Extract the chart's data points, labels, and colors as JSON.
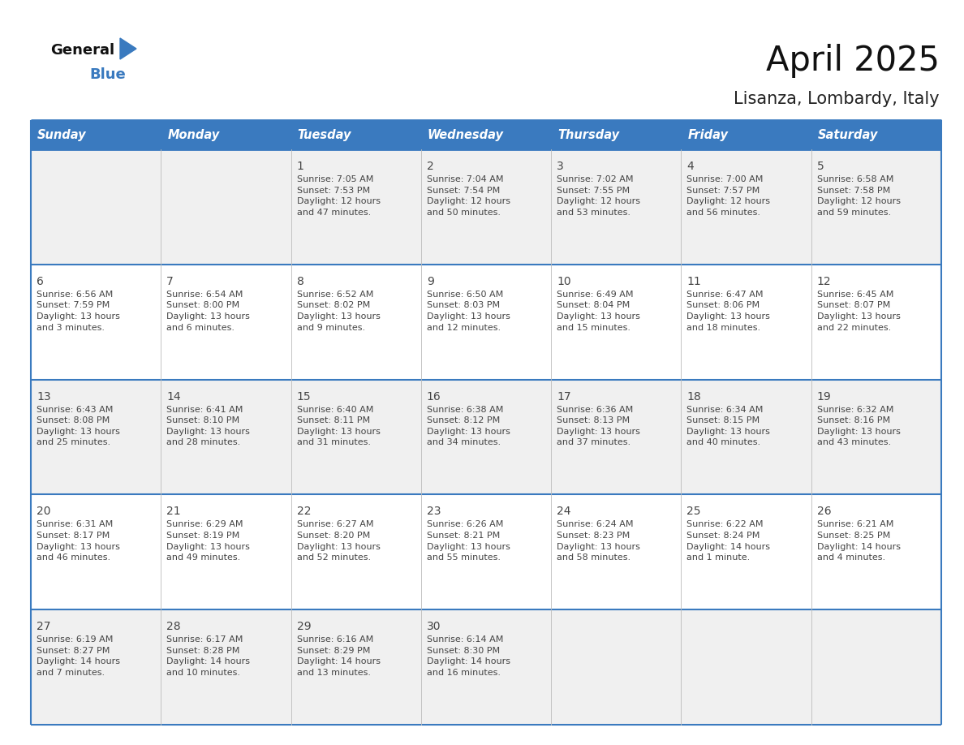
{
  "title": "April 2025",
  "subtitle": "Lisanza, Lombardy, Italy",
  "header_bg": "#3a7abf",
  "header_text_color": "#ffffff",
  "row_bg_odd": "#f0f0f0",
  "row_bg_even": "#ffffff",
  "border_color": "#3a7abf",
  "text_color": "#444444",
  "days_of_week": [
    "Sunday",
    "Monday",
    "Tuesday",
    "Wednesday",
    "Thursday",
    "Friday",
    "Saturday"
  ],
  "weeks": [
    [
      {
        "day": "",
        "info": ""
      },
      {
        "day": "",
        "info": ""
      },
      {
        "day": "1",
        "info": "Sunrise: 7:05 AM\nSunset: 7:53 PM\nDaylight: 12 hours\nand 47 minutes."
      },
      {
        "day": "2",
        "info": "Sunrise: 7:04 AM\nSunset: 7:54 PM\nDaylight: 12 hours\nand 50 minutes."
      },
      {
        "day": "3",
        "info": "Sunrise: 7:02 AM\nSunset: 7:55 PM\nDaylight: 12 hours\nand 53 minutes."
      },
      {
        "day": "4",
        "info": "Sunrise: 7:00 AM\nSunset: 7:57 PM\nDaylight: 12 hours\nand 56 minutes."
      },
      {
        "day": "5",
        "info": "Sunrise: 6:58 AM\nSunset: 7:58 PM\nDaylight: 12 hours\nand 59 minutes."
      }
    ],
    [
      {
        "day": "6",
        "info": "Sunrise: 6:56 AM\nSunset: 7:59 PM\nDaylight: 13 hours\nand 3 minutes."
      },
      {
        "day": "7",
        "info": "Sunrise: 6:54 AM\nSunset: 8:00 PM\nDaylight: 13 hours\nand 6 minutes."
      },
      {
        "day": "8",
        "info": "Sunrise: 6:52 AM\nSunset: 8:02 PM\nDaylight: 13 hours\nand 9 minutes."
      },
      {
        "day": "9",
        "info": "Sunrise: 6:50 AM\nSunset: 8:03 PM\nDaylight: 13 hours\nand 12 minutes."
      },
      {
        "day": "10",
        "info": "Sunrise: 6:49 AM\nSunset: 8:04 PM\nDaylight: 13 hours\nand 15 minutes."
      },
      {
        "day": "11",
        "info": "Sunrise: 6:47 AM\nSunset: 8:06 PM\nDaylight: 13 hours\nand 18 minutes."
      },
      {
        "day": "12",
        "info": "Sunrise: 6:45 AM\nSunset: 8:07 PM\nDaylight: 13 hours\nand 22 minutes."
      }
    ],
    [
      {
        "day": "13",
        "info": "Sunrise: 6:43 AM\nSunset: 8:08 PM\nDaylight: 13 hours\nand 25 minutes."
      },
      {
        "day": "14",
        "info": "Sunrise: 6:41 AM\nSunset: 8:10 PM\nDaylight: 13 hours\nand 28 minutes."
      },
      {
        "day": "15",
        "info": "Sunrise: 6:40 AM\nSunset: 8:11 PM\nDaylight: 13 hours\nand 31 minutes."
      },
      {
        "day": "16",
        "info": "Sunrise: 6:38 AM\nSunset: 8:12 PM\nDaylight: 13 hours\nand 34 minutes."
      },
      {
        "day": "17",
        "info": "Sunrise: 6:36 AM\nSunset: 8:13 PM\nDaylight: 13 hours\nand 37 minutes."
      },
      {
        "day": "18",
        "info": "Sunrise: 6:34 AM\nSunset: 8:15 PM\nDaylight: 13 hours\nand 40 minutes."
      },
      {
        "day": "19",
        "info": "Sunrise: 6:32 AM\nSunset: 8:16 PM\nDaylight: 13 hours\nand 43 minutes."
      }
    ],
    [
      {
        "day": "20",
        "info": "Sunrise: 6:31 AM\nSunset: 8:17 PM\nDaylight: 13 hours\nand 46 minutes."
      },
      {
        "day": "21",
        "info": "Sunrise: 6:29 AM\nSunset: 8:19 PM\nDaylight: 13 hours\nand 49 minutes."
      },
      {
        "day": "22",
        "info": "Sunrise: 6:27 AM\nSunset: 8:20 PM\nDaylight: 13 hours\nand 52 minutes."
      },
      {
        "day": "23",
        "info": "Sunrise: 6:26 AM\nSunset: 8:21 PM\nDaylight: 13 hours\nand 55 minutes."
      },
      {
        "day": "24",
        "info": "Sunrise: 6:24 AM\nSunset: 8:23 PM\nDaylight: 13 hours\nand 58 minutes."
      },
      {
        "day": "25",
        "info": "Sunrise: 6:22 AM\nSunset: 8:24 PM\nDaylight: 14 hours\nand 1 minute."
      },
      {
        "day": "26",
        "info": "Sunrise: 6:21 AM\nSunset: 8:25 PM\nDaylight: 14 hours\nand 4 minutes."
      }
    ],
    [
      {
        "day": "27",
        "info": "Sunrise: 6:19 AM\nSunset: 8:27 PM\nDaylight: 14 hours\nand 7 minutes."
      },
      {
        "day": "28",
        "info": "Sunrise: 6:17 AM\nSunset: 8:28 PM\nDaylight: 14 hours\nand 10 minutes."
      },
      {
        "day": "29",
        "info": "Sunrise: 6:16 AM\nSunset: 8:29 PM\nDaylight: 14 hours\nand 13 minutes."
      },
      {
        "day": "30",
        "info": "Sunrise: 6:14 AM\nSunset: 8:30 PM\nDaylight: 14 hours\nand 16 minutes."
      },
      {
        "day": "",
        "info": ""
      },
      {
        "day": "",
        "info": ""
      },
      {
        "day": "",
        "info": ""
      }
    ]
  ],
  "logo_triangle_color": "#3a7abf",
  "header_fontsize": 10.5,
  "day_number_fontsize": 10,
  "info_fontsize": 8.0,
  "title_fontsize": 30,
  "subtitle_fontsize": 15
}
